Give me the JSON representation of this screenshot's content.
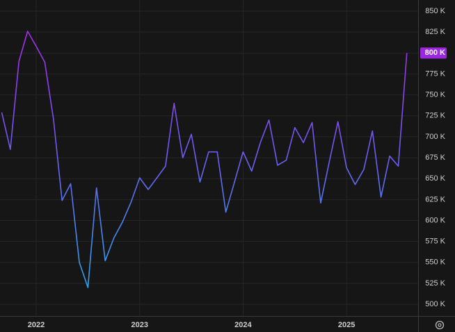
{
  "chart_data": {
    "type": "line",
    "x": [
      2021.667,
      2021.75,
      2021.833,
      2021.917,
      2022.0,
      2022.083,
      2022.167,
      2022.25,
      2022.333,
      2022.417,
      2022.5,
      2022.583,
      2022.667,
      2022.75,
      2022.833,
      2022.917,
      2023.0,
      2023.083,
      2023.167,
      2023.25,
      2023.333,
      2023.417,
      2023.5,
      2023.583,
      2023.667,
      2023.75,
      2023.833,
      2023.917,
      2024.0,
      2024.083,
      2024.167,
      2024.25,
      2024.333,
      2024.417,
      2024.5,
      2024.583,
      2024.667,
      2024.75,
      2024.833,
      2024.917,
      2025.0,
      2025.083,
      2025.167,
      2025.25,
      2025.333,
      2025.417,
      2025.5,
      2025.583
    ],
    "series": [
      {
        "colors": [
          "#a52ce8",
          "#6b5ff2",
          "#2aa8ef"
        ],
        "values": [
          729000,
          685000,
          790000,
          826000,
          808000,
          789000,
          721000,
          624000,
          644000,
          550000,
          520000,
          639000,
          552000,
          579000,
          598000,
          622000,
          651000,
          637000,
          651000,
          665000,
          740000,
          675000,
          703000,
          646000,
          682000,
          682000,
          610000,
          646000,
          682000,
          659000,
          693000,
          720000,
          666000,
          672000,
          711000,
          693000,
          717000,
          621000,
          670000,
          718000,
          663000,
          643000,
          661000,
          707000,
          628000,
          677000,
          665000,
          800000
        ],
        "last_label": "800 K",
        "last_label_color": "#9c27e0"
      }
    ],
    "xlim": [
      2021.65,
      2025.692
    ],
    "xticks": [
      2022,
      2023,
      2024,
      2025
    ],
    "ylim": [
      486000,
      863300
    ],
    "yticks": [
      {
        "value": 500000,
        "label": "500 K"
      },
      {
        "value": 525000,
        "label": "525 K"
      },
      {
        "value": 550000,
        "label": "550 K"
      },
      {
        "value": 575000,
        "label": "575 K"
      },
      {
        "value": 600000,
        "label": "600 K"
      },
      {
        "value": 625000,
        "label": "625 K"
      },
      {
        "value": 650000,
        "label": "650 K"
      },
      {
        "value": 675000,
        "label": "675 K"
      },
      {
        "value": 700000,
        "label": "700 K"
      },
      {
        "value": 725000,
        "label": "725 K"
      },
      {
        "value": 750000,
        "label": "750 K"
      },
      {
        "value": 775000,
        "label": "775 K"
      },
      {
        "value": 800000,
        "label": "800 K"
      },
      {
        "value": 825000,
        "label": "825 K"
      },
      {
        "value": 850000,
        "label": "850 K"
      }
    ],
    "grid": true
  }
}
